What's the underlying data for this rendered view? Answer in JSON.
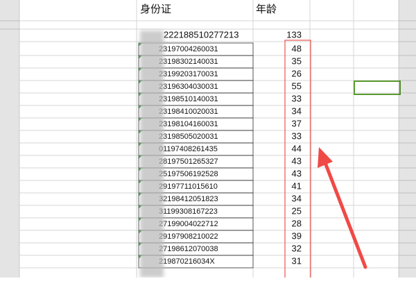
{
  "header": {
    "id_label": "身份证",
    "age_label": "年龄"
  },
  "rows": [
    {
      "id": "222188510277213",
      "age": 133
    },
    {
      "id": "23197004260031",
      "age": 48
    },
    {
      "id": "23198302140031",
      "age": 35
    },
    {
      "id": "23199203170031",
      "age": 26
    },
    {
      "id": "23196304030031",
      "age": 55
    },
    {
      "id": "23198510140031",
      "age": 33
    },
    {
      "id": "23198410020031",
      "age": 34
    },
    {
      "id": "23198104160031",
      "age": 37
    },
    {
      "id": "23198505020031",
      "age": 33
    },
    {
      "id": "01197408261435",
      "age": 44
    },
    {
      "id": "28197501265327",
      "age": 43
    },
    {
      "id": "25197506192528",
      "age": 43
    },
    {
      "id": "29197711015610",
      "age": 41
    },
    {
      "id": "32198412051823",
      "age": 34
    },
    {
      "id": "31199308167223",
      "age": 25
    },
    {
      "id": "27199004022712",
      "age": 28
    },
    {
      "id": "29197908210022",
      "age": 39
    },
    {
      "id": "27198612070038",
      "age": 32
    },
    {
      "id": "219870216034X",
      "age": 31
    }
  ]
}
